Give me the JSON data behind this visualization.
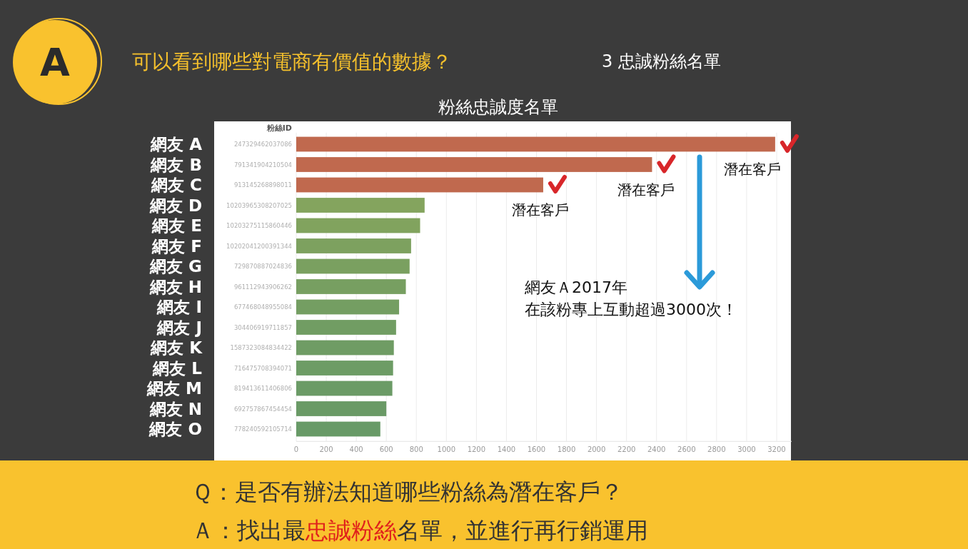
{
  "chart_data": {
    "type": "bar",
    "orientation": "horizontal",
    "title": "粉絲忠誠度名單",
    "ylabel": "粉絲ID",
    "categories": [
      "網友 A",
      "網友 B",
      "網友 C",
      "網友 D",
      "網友 E",
      "網友 F",
      "網友 G",
      "網友 H",
      "網友 I",
      "網友 J",
      "網友 K",
      "網友 L",
      "網友 M",
      "網友 N",
      "網友 O"
    ],
    "values": [
      3190,
      2370,
      1645,
      855,
      825,
      765,
      755,
      730,
      685,
      665,
      650,
      645,
      640,
      600,
      560
    ],
    "colors": [
      "#c0694e",
      "#c0694e",
      "#c0694e",
      "#84a45e",
      "#81a35e",
      "#7da15f",
      "#7aa060",
      "#779f61",
      "#749e62",
      "#719d63",
      "#6f9c64",
      "#6d9c65",
      "#6b9b66",
      "#6a9a66",
      "#689a67"
    ],
    "xlim": [
      0,
      3300
    ],
    "xticks": [
      0,
      200,
      400,
      600,
      800,
      1000,
      1200,
      1400,
      1600,
      1800,
      2000,
      2200,
      2400,
      2600,
      2800,
      3000,
      3200
    ],
    "grid": "x",
    "annotations": [
      "A",
      "可以看到哪些對電商有價值的數據？",
      "3 忠誠粉絲名單",
      {
        "text": "潛在客戶",
        "x": 3040,
        "y": "網友 A"
      },
      {
        "text": "潛在客戶",
        "x": 2330,
        "y": "網友 B"
      },
      {
        "text": "潛在客戶",
        "x": 1625,
        "y": "網友 C"
      },
      "網友Ａ2017年",
      "在該粉專上互動超過3000次！",
      "247329462037086",
      "791341904210504",
      "913145268898011",
      "10203965308207025",
      "10203275115860446",
      "10202041200391344",
      "729870887024836",
      "961112943906262",
      "677468048955084",
      "304406919711857",
      "1587323084834422",
      "716475708394071",
      "819413611406806",
      "692757867454454",
      "778240592105714",
      "Ｑ：是否有辦法知道哪些粉絲為潛在客戶？",
      "Ａ：找出最",
      "忠誠粉絲",
      "名單，並進行再行銷運用"
    ]
  }
}
